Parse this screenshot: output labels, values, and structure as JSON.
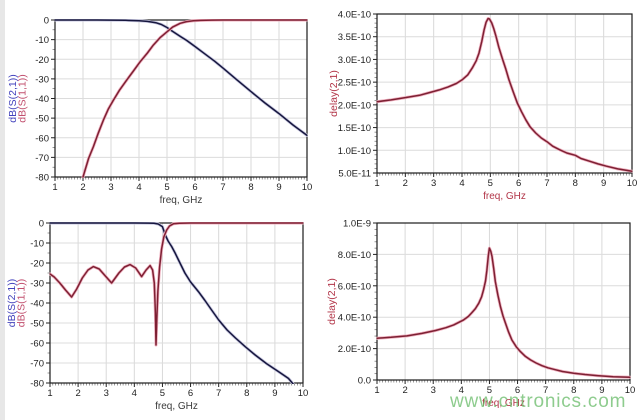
{
  "watermark": {
    "text": "www.cntronics.com",
    "color": "#6ebe6e"
  },
  "chart_data": [
    {
      "name": "s-parameters-smooth-lowpass",
      "type": "line",
      "xlabel": "freq, GHz",
      "xlabel_color": "#3a3a3a",
      "ylabel_lines": [
        {
          "text": "dB(S(2,1))",
          "color": "#4343bd"
        },
        {
          "text": "dB(S(1,1))",
          "color": "#c14f6e"
        }
      ],
      "xlim": [
        1,
        10
      ],
      "ylim": [
        -80,
        0
      ],
      "grid": true,
      "legend": "none",
      "xticks": {
        "values": [
          1,
          2,
          3,
          4,
          5,
          6,
          7,
          8,
          9,
          10
        ],
        "labels": [
          "1",
          "2",
          "3",
          "4",
          "5",
          "6",
          "7",
          "8",
          "9",
          "10"
        ]
      },
      "yticks": {
        "values": [
          0,
          -10,
          -20,
          -30,
          -40,
          -50,
          -60,
          -70,
          -80
        ],
        "labels": [
          "0",
          "-10",
          "-20",
          "-30",
          "-40",
          "-50",
          "-60",
          "-70",
          "-80"
        ]
      },
      "x_minor_step": 0.1,
      "y_minor_step": 5,
      "series": [
        {
          "name": "dB(S(2,1))",
          "color": "#16163d",
          "halo": "#c6c6df",
          "points": [
            [
              1,
              0
            ],
            [
              1.5,
              0
            ],
            [
              2,
              0
            ],
            [
              2.5,
              0
            ],
            [
              3,
              -0.05
            ],
            [
              3.5,
              -0.15
            ],
            [
              4,
              -0.35
            ],
            [
              4.3,
              -0.7
            ],
            [
              4.6,
              -1.4
            ],
            [
              4.8,
              -2.3
            ],
            [
              5,
              -3.8
            ],
            [
              5.2,
              -5.8
            ],
            [
              5.5,
              -8.6
            ],
            [
              5.7,
              -10.4
            ],
            [
              6,
              -13.5
            ],
            [
              6.3,
              -16.7
            ],
            [
              6.7,
              -21
            ],
            [
              7,
              -24.5
            ],
            [
              7.5,
              -30.5
            ],
            [
              8,
              -36.5
            ],
            [
              8.5,
              -42.3
            ],
            [
              9,
              -47.7
            ],
            [
              9.5,
              -53.5
            ],
            [
              10,
              -58.8
            ]
          ]
        },
        {
          "name": "dB(S(1,1))",
          "color": "#7d2033",
          "halo": "#efb0bf",
          "points": [
            [
              2,
              -80
            ],
            [
              2.2,
              -70.5
            ],
            [
              2.37,
              -64.5
            ],
            [
              2.55,
              -57.5
            ],
            [
              2.73,
              -51
            ],
            [
              2.9,
              -45.5
            ],
            [
              3.08,
              -41
            ],
            [
              3.3,
              -35.8
            ],
            [
              3.56,
              -30.6
            ],
            [
              3.8,
              -26
            ],
            [
              4.04,
              -21.3
            ],
            [
              4.3,
              -16.8
            ],
            [
              4.51,
              -12.8
            ],
            [
              4.75,
              -9
            ],
            [
              5,
              -6
            ],
            [
              5.2,
              -3.6
            ],
            [
              5.47,
              -1.7
            ],
            [
              5.7,
              -0.8
            ],
            [
              5.94,
              -0.4
            ],
            [
              6.2,
              -0.2
            ],
            [
              6.6,
              -0.05
            ],
            [
              7,
              0
            ],
            [
              10,
              0
            ]
          ]
        }
      ]
    },
    {
      "name": "group-delay-smooth-lowpass",
      "type": "line",
      "xlabel": "freq, GHz",
      "xlabel_color": "#b23548",
      "ylabel_lines": [
        {
          "text": "delay(2,1)",
          "color": "#b23548"
        }
      ],
      "xlim": [
        1,
        10
      ],
      "ylim": [
        5e-11,
        4e-10
      ],
      "grid": true,
      "legend": "none",
      "xticks": {
        "values": [
          1,
          2,
          3,
          4,
          5,
          6,
          7,
          8,
          9,
          10
        ],
        "labels": [
          "1",
          "2",
          "3",
          "4",
          "5",
          "6",
          "7",
          "8",
          "9",
          "10"
        ]
      },
      "yticks": {
        "values": [
          4e-10,
          3.5e-10,
          3e-10,
          2.5e-10,
          2e-10,
          1.5e-10,
          1e-10,
          5e-11
        ],
        "labels": [
          "4.0E-10",
          "3.5E-10",
          "3.0E-10",
          "2.5E-10",
          "2.0E-10",
          "1.5E-10",
          "1.0E-10",
          "5.0E-11"
        ]
      },
      "x_minor_step": 0.1,
      "y_minor_step": 1e-11,
      "series": [
        {
          "name": "delay(2,1)",
          "color": "#7d2033",
          "halo": "#efb0bf",
          "points": [
            [
              1,
              2.07e-10
            ],
            [
              1.5,
              2.11e-10
            ],
            [
              2,
              2.16e-10
            ],
            [
              2.5,
              2.21e-10
            ],
            [
              2.8,
              2.26e-10
            ],
            [
              3.2,
              2.33e-10
            ],
            [
              3.5,
              2.39e-10
            ],
            [
              3.8,
              2.47e-10
            ],
            [
              4,
              2.55e-10
            ],
            [
              4.2,
              2.66e-10
            ],
            [
              4.36,
              2.81e-10
            ],
            [
              4.5,
              2.97e-10
            ],
            [
              4.6,
              3.14e-10
            ],
            [
              4.7,
              3.4e-10
            ],
            [
              4.78,
              3.65e-10
            ],
            [
              4.85,
              3.82e-10
            ],
            [
              4.92,
              3.9e-10
            ],
            [
              4.97,
              3.89e-10
            ],
            [
              5.05,
              3.8e-10
            ],
            [
              5.12,
              3.68e-10
            ],
            [
              5.2,
              3.51e-10
            ],
            [
              5.3,
              3.27e-10
            ],
            [
              5.42,
              3.03e-10
            ],
            [
              5.55,
              2.78e-10
            ],
            [
              5.66,
              2.55e-10
            ],
            [
              5.8,
              2.3e-10
            ],
            [
              5.95,
              2.04e-10
            ],
            [
              6.1,
              1.85e-10
            ],
            [
              6.25,
              1.67e-10
            ],
            [
              6.4,
              1.52e-10
            ],
            [
              6.6,
              1.38e-10
            ],
            [
              6.8,
              1.27e-10
            ],
            [
              7,
              1.19e-10
            ],
            [
              7.2,
              1.09e-10
            ],
            [
              7.45,
              1.01e-10
            ],
            [
              7.7,
              9.4e-11
            ],
            [
              8,
              8.9e-11
            ],
            [
              8.2,
              8.2e-11
            ],
            [
              8.5,
              7.6e-11
            ],
            [
              8.8,
              7e-11
            ],
            [
              9.1,
              6.5e-11
            ],
            [
              9.5,
              5.9e-11
            ],
            [
              10,
              5.4e-11
            ]
          ]
        }
      ]
    },
    {
      "name": "s-parameters-elliptic-lowpass",
      "type": "line",
      "xlabel": "freq, GHz",
      "xlabel_color": "#3a3a3a",
      "ylabel_lines": [
        {
          "text": "dB(S(2,1))",
          "color": "#4343bd"
        },
        {
          "text": "dB(S(1,1))",
          "color": "#c14f6e"
        }
      ],
      "xlim": [
        1,
        10
      ],
      "ylim": [
        -80,
        0
      ],
      "grid": true,
      "legend": "none",
      "xticks": {
        "values": [
          1,
          2,
          3,
          4,
          5,
          6,
          7,
          8,
          9,
          10
        ],
        "labels": [
          "1",
          "2",
          "3",
          "4",
          "5",
          "6",
          "7",
          "8",
          "9",
          "10"
        ]
      },
      "yticks": {
        "values": [
          0,
          -10,
          -20,
          -30,
          -40,
          -50,
          -60,
          -70,
          -80
        ],
        "labels": [
          "0",
          "-10",
          "-20",
          "-30",
          "-40",
          "-50",
          "-60",
          "-70",
          "-80"
        ]
      },
      "x_minor_step": 0.1,
      "y_minor_step": 5,
      "series": [
        {
          "name": "dB(S(2,1))",
          "color": "#16163d",
          "halo": "#c6c6df",
          "points": [
            [
              1,
              0
            ],
            [
              3,
              0
            ],
            [
              4,
              0
            ],
            [
              4.5,
              -0.05
            ],
            [
              4.7,
              -0.15
            ],
            [
              4.85,
              -0.5
            ],
            [
              5,
              -1.8
            ],
            [
              5.1,
              -6
            ],
            [
              5.2,
              -9
            ],
            [
              5.33,
              -11.8
            ],
            [
              5.45,
              -15
            ],
            [
              5.57,
              -18.5
            ],
            [
              5.8,
              -25
            ],
            [
              6,
              -29.5
            ],
            [
              6.28,
              -34.3
            ],
            [
              6.5,
              -38.5
            ],
            [
              6.75,
              -43.5
            ],
            [
              7,
              -48.5
            ],
            [
              7.3,
              -53.5
            ],
            [
              7.6,
              -57.5
            ],
            [
              7.94,
              -61.8
            ],
            [
              8.3,
              -66
            ],
            [
              8.7,
              -70.3
            ],
            [
              9.13,
              -74.3
            ],
            [
              9.48,
              -77.7
            ],
            [
              9.65,
              -80.5
            ]
          ]
        },
        {
          "name": "dB(S(1,1))",
          "color": "#7d2033",
          "halo": "#efb0bf",
          "points": [
            [
              1,
              -25.5
            ],
            [
              1.15,
              -27
            ],
            [
              1.35,
              -30
            ],
            [
              1.55,
              -33.5
            ],
            [
              1.77,
              -37
            ],
            [
              1.95,
              -33
            ],
            [
              2.15,
              -27.5
            ],
            [
              2.35,
              -23.5
            ],
            [
              2.54,
              -21.8
            ],
            [
              2.75,
              -23
            ],
            [
              2.95,
              -26.2
            ],
            [
              3.19,
              -30
            ],
            [
              3.45,
              -25
            ],
            [
              3.65,
              -22
            ],
            [
              3.85,
              -20.8
            ],
            [
              4.05,
              -22.5
            ],
            [
              4.26,
              -26.8
            ],
            [
              4.42,
              -23.5
            ],
            [
              4.56,
              -21.3
            ],
            [
              4.65,
              -23.5
            ],
            [
              4.71,
              -30
            ],
            [
              4.75,
              -45
            ],
            [
              4.77,
              -61
            ],
            [
              4.8,
              -48
            ],
            [
              4.84,
              -34
            ],
            [
              4.9,
              -22
            ],
            [
              4.97,
              -13
            ],
            [
              5.05,
              -7
            ],
            [
              5.15,
              -3.5
            ],
            [
              5.25,
              -1.5
            ],
            [
              5.39,
              -0.4
            ],
            [
              5.6,
              -0.1
            ],
            [
              6,
              0
            ],
            [
              10,
              0
            ]
          ]
        }
      ]
    },
    {
      "name": "group-delay-elliptic-lowpass",
      "type": "line",
      "xlabel": "freq, GHz",
      "xlabel_color": "#b23548",
      "ylabel_lines": [
        {
          "text": "delay(2,1)",
          "color": "#b23548"
        }
      ],
      "xlim": [
        1,
        10
      ],
      "ylim": [
        0,
        1e-09
      ],
      "grid": true,
      "legend": "none",
      "xticks": {
        "values": [
          1,
          2,
          3,
          4,
          5,
          6,
          7,
          8,
          9,
          10
        ],
        "labels": [
          "1",
          "2",
          "3",
          "4",
          "5",
          "6",
          "7",
          "8",
          "9",
          "10"
        ]
      },
      "yticks": {
        "values": [
          1e-09,
          8e-10,
          6e-10,
          4e-10,
          2e-10,
          0
        ],
        "labels": [
          "1.0E-9",
          "8.0E-10",
          "6.0E-10",
          "4.0E-10",
          "2.0E-10",
          "0.0"
        ]
      },
      "x_minor_step": 0.1,
      "y_minor_step": 4e-11,
      "series": [
        {
          "name": "delay(2,1)",
          "color": "#7d2033",
          "halo": "#efb0bf",
          "points": [
            [
              1,
              2.66e-10
            ],
            [
              1.5,
              2.72e-10
            ],
            [
              2.07,
              2.81e-10
            ],
            [
              2.6,
              2.97e-10
            ],
            [
              3.08,
              3.15e-10
            ],
            [
              3.45,
              3.33e-10
            ],
            [
              3.73,
              3.51e-10
            ],
            [
              4.08,
              3.83e-10
            ],
            [
              4.25,
              4.05e-10
            ],
            [
              4.38,
              4.3e-10
            ],
            [
              4.5,
              4.55e-10
            ],
            [
              4.62,
              4.89e-10
            ],
            [
              4.72,
              5.3e-10
            ],
            [
              4.79,
              5.74e-10
            ],
            [
              4.86,
              6.3e-10
            ],
            [
              4.91,
              7e-10
            ],
            [
              4.96,
              7.9e-10
            ],
            [
              5,
              8.4e-10
            ],
            [
              5.05,
              8.2e-10
            ],
            [
              5.09,
              7.87e-10
            ],
            [
              5.15,
              7.1e-10
            ],
            [
              5.21,
              6.28e-10
            ],
            [
              5.3,
              5.4e-10
            ],
            [
              5.39,
              4.68e-10
            ],
            [
              5.48,
              4.1e-10
            ],
            [
              5.57,
              3.62e-10
            ],
            [
              5.68,
              3.05e-10
            ],
            [
              5.8,
              2.55e-10
            ],
            [
              5.95,
              2.12e-10
            ],
            [
              6.1,
              1.81e-10
            ],
            [
              6.28,
              1.5e-10
            ],
            [
              6.46,
              1.28e-10
            ],
            [
              6.66,
              1.08e-10
            ],
            [
              6.87,
              9.1e-11
            ],
            [
              7.08,
              7.8e-11
            ],
            [
              7.29,
              6.8e-11
            ],
            [
              7.6,
              5.4e-11
            ],
            [
              8,
              4.3e-11
            ],
            [
              8.4,
              3.5e-11
            ],
            [
              8.83,
              2.8e-11
            ],
            [
              9.4,
              2.1e-11
            ],
            [
              10,
              1.7e-11
            ]
          ]
        }
      ]
    }
  ]
}
